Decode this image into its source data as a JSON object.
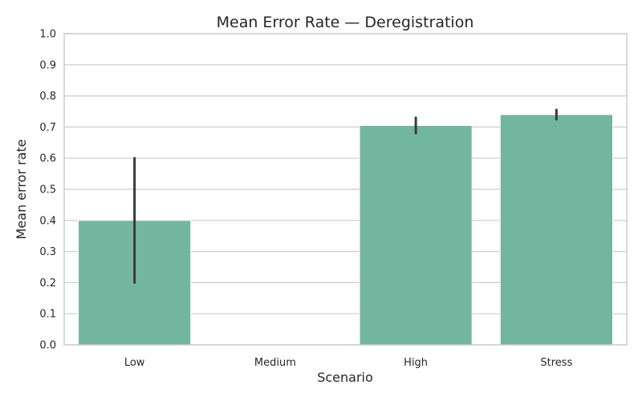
{
  "chart_data": {
    "type": "bar",
    "title": "Mean Error Rate — Deregistration",
    "xlabel": "Scenario",
    "ylabel": "Mean error rate",
    "categories": [
      "Low",
      "Medium",
      "High",
      "Stress"
    ],
    "values": [
      0.4,
      null,
      0.705,
      0.74
    ],
    "error_bars": [
      {
        "low": 0.2,
        "high": 0.6
      },
      null,
      {
        "low": 0.68,
        "high": 0.73
      },
      {
        "low": 0.725,
        "high": 0.755
      }
    ],
    "ylim": [
      0,
      1.0
    ],
    "yticks": [
      "0.0",
      "0.1",
      "0.2",
      "0.3",
      "0.4",
      "0.5",
      "0.6",
      "0.7",
      "0.8",
      "0.9",
      "1.0"
    ],
    "grid": true,
    "bar_color": "#73b69f",
    "errbar_color": "#3a3a3a"
  }
}
